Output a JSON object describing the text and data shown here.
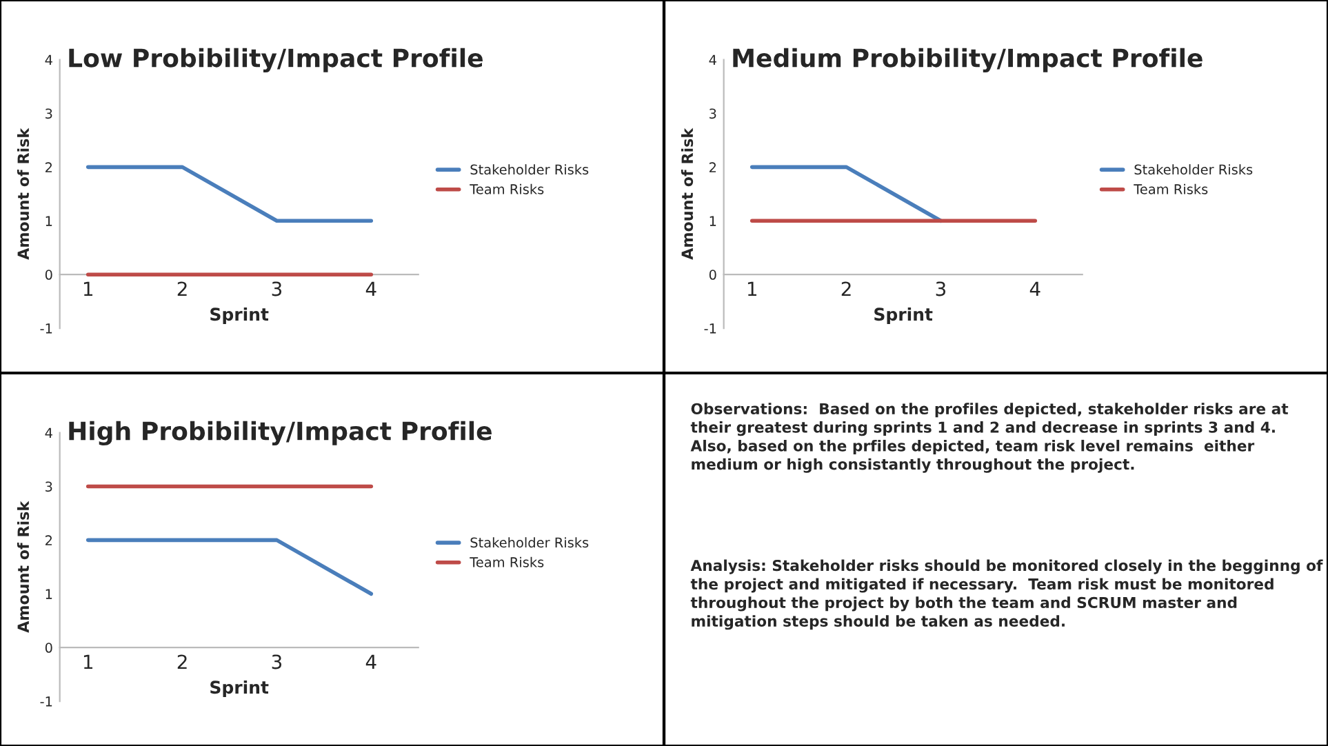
{
  "chart_data": [
    {
      "type": "line",
      "title": "Low Probibility/Impact Profile",
      "xlabel": "Sprint",
      "ylabel": "Amount of Risk",
      "categories": [
        "1",
        "2",
        "3",
        "4"
      ],
      "ylim": [
        -1,
        4
      ],
      "yticks": [
        -1,
        0,
        1,
        2,
        3,
        4
      ],
      "legend": "right",
      "grid": false,
      "series": [
        {
          "name": "Stakeholder Risks",
          "color": "#4a7ebb",
          "values": [
            2,
            2,
            1,
            1
          ]
        },
        {
          "name": "Team Risks",
          "color": "#be4b48",
          "values": [
            0,
            0,
            0,
            0
          ]
        }
      ]
    },
    {
      "type": "line",
      "title": "Medium Probibility/Impact Profile",
      "xlabel": "Sprint",
      "ylabel": "Amount of Risk",
      "categories": [
        "1",
        "2",
        "3",
        "4"
      ],
      "ylim": [
        -1,
        4
      ],
      "yticks": [
        -1,
        0,
        1,
        2,
        3,
        4
      ],
      "legend": "right",
      "grid": false,
      "series": [
        {
          "name": "Stakeholder Risks",
          "color": "#4a7ebb",
          "values": [
            2,
            2,
            1,
            null
          ]
        },
        {
          "name": "Team Risks",
          "color": "#be4b48",
          "values": [
            1,
            1,
            1,
            1
          ]
        }
      ]
    },
    {
      "type": "line",
      "title": "High Probibility/Impact Profile",
      "xlabel": "Sprint",
      "ylabel": "Amount of Risk",
      "categories": [
        "1",
        "2",
        "3",
        "4"
      ],
      "ylim": [
        -1,
        4
      ],
      "yticks": [
        -1,
        0,
        1,
        2,
        3,
        4
      ],
      "legend": "right",
      "grid": false,
      "series": [
        {
          "name": "Stakeholder Risks",
          "color": "#4a7ebb",
          "values": [
            2,
            2,
            2,
            1
          ]
        },
        {
          "name": "Team Risks",
          "color": "#be4b48",
          "values": [
            3,
            3,
            3,
            3
          ]
        }
      ]
    },
    {
      "type": "other",
      "annotations": [
        "Observations:  Based on the profiles depicted, stakeholder risks are at their greatest during sprints 1 and 2 and decrease in sprints 3 and 4.  Also, based on the prfiles depicted, team risk level remains  either medium or high consistantly throughout the project.",
        "Analysis: Stakeholder risks should be monitored closely in the begginng of the project and mitigated if necessary.  Team risk must be monitored throughout the project by both the team and SCRUM master and mitigation steps should be taken as needed."
      ]
    }
  ]
}
